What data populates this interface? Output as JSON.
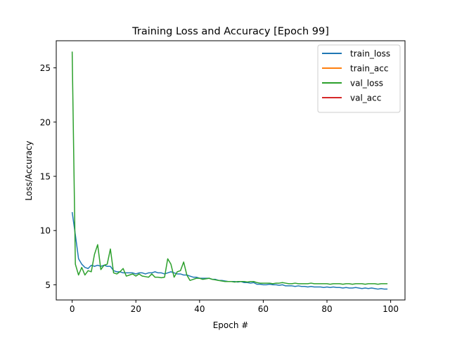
{
  "chart_data": {
    "type": "line",
    "title": "Training Loss and Accuracy [Epoch 99]",
    "xlabel": "Epoch #",
    "ylabel": "Loss/Accuracy",
    "xlim": [
      -5,
      104.5
    ],
    "ylim": [
      3.6,
      27.5
    ],
    "x_ticks": [
      0,
      20,
      40,
      60,
      80,
      100
    ],
    "y_ticks": [
      5,
      10,
      15,
      20,
      25
    ],
    "grid": false,
    "legend_position": "top-right",
    "series": [
      {
        "name": "train_loss",
        "color": "#1f77b4",
        "x": [
          0,
          1,
          2,
          3,
          4,
          5,
          6,
          7,
          8,
          9,
          10,
          11,
          12,
          13,
          14,
          15,
          16,
          17,
          18,
          19,
          20,
          21,
          22,
          23,
          24,
          25,
          26,
          27,
          28,
          29,
          30,
          31,
          32,
          33,
          34,
          35,
          36,
          37,
          38,
          39,
          40,
          41,
          42,
          43,
          44,
          45,
          46,
          47,
          48,
          49,
          50,
          51,
          52,
          53,
          54,
          55,
          56,
          57,
          58,
          59,
          60,
          61,
          62,
          63,
          64,
          65,
          66,
          67,
          68,
          69,
          70,
          71,
          72,
          73,
          74,
          75,
          76,
          77,
          78,
          79,
          80,
          81,
          82,
          83,
          84,
          85,
          86,
          87,
          88,
          89,
          90,
          91,
          92,
          93,
          94,
          95,
          96,
          97,
          98,
          99
        ],
        "y": [
          11.7,
          9.6,
          7.4,
          6.9,
          6.6,
          6.5,
          6.8,
          6.7,
          6.8,
          6.7,
          6.8,
          6.7,
          6.7,
          6.3,
          6.2,
          6.2,
          6.1,
          6.1,
          6.1,
          6.1,
          6.0,
          6.1,
          6.1,
          6.0,
          6.1,
          6.1,
          6.2,
          6.1,
          6.1,
          6.0,
          6.1,
          6.2,
          6.1,
          6.0,
          6.0,
          5.9,
          5.9,
          5.8,
          5.7,
          5.7,
          5.6,
          5.6,
          5.6,
          5.6,
          5.5,
          5.5,
          5.4,
          5.4,
          5.35,
          5.3,
          5.3,
          5.3,
          5.25,
          5.3,
          5.2,
          5.2,
          5.15,
          5.2,
          5.05,
          5.05,
          5.0,
          5.0,
          5.05,
          5.0,
          5.0,
          4.95,
          5.0,
          4.9,
          4.9,
          4.9,
          4.85,
          4.9,
          4.85,
          4.85,
          4.8,
          4.85,
          4.8,
          4.8,
          4.8,
          4.75,
          4.8,
          4.75,
          4.8,
          4.75,
          4.75,
          4.7,
          4.75,
          4.7,
          4.7,
          4.75,
          4.7,
          4.65,
          4.7,
          4.65,
          4.7,
          4.65,
          4.6,
          4.65,
          4.6,
          4.6
        ]
      },
      {
        "name": "train_acc",
        "color": "#ff7f0e",
        "x": [],
        "y": []
      },
      {
        "name": "val_loss",
        "color": "#2ca02c",
        "x": [
          0,
          1,
          2,
          3,
          4,
          5,
          6,
          7,
          8,
          9,
          10,
          11,
          12,
          13,
          14,
          15,
          16,
          17,
          18,
          19,
          20,
          21,
          22,
          23,
          24,
          25,
          26,
          27,
          28,
          29,
          30,
          31,
          32,
          33,
          34,
          35,
          36,
          37,
          38,
          39,
          40,
          41,
          42,
          43,
          44,
          45,
          46,
          47,
          48,
          49,
          50,
          51,
          52,
          53,
          54,
          55,
          56,
          57,
          58,
          59,
          60,
          61,
          62,
          63,
          64,
          65,
          66,
          67,
          68,
          69,
          70,
          71,
          72,
          73,
          74,
          75,
          76,
          77,
          78,
          79,
          80,
          81,
          82,
          83,
          84,
          85,
          86,
          87,
          88,
          89,
          90,
          91,
          92,
          93,
          94,
          95,
          96,
          97,
          98,
          99
        ],
        "y": [
          26.5,
          6.9,
          5.9,
          6.6,
          5.9,
          6.3,
          6.2,
          7.8,
          8.7,
          6.4,
          6.8,
          6.9,
          8.3,
          6.1,
          6.0,
          6.2,
          6.5,
          5.8,
          5.9,
          6.0,
          5.8,
          6.0,
          5.8,
          5.75,
          5.7,
          6.0,
          5.7,
          5.7,
          5.65,
          5.7,
          7.4,
          6.9,
          5.7,
          6.2,
          6.3,
          7.1,
          5.9,
          5.4,
          5.5,
          5.6,
          5.6,
          5.5,
          5.55,
          5.6,
          5.5,
          5.45,
          5.4,
          5.35,
          5.3,
          5.3,
          5.3,
          5.25,
          5.3,
          5.3,
          5.3,
          5.25,
          5.3,
          5.3,
          5.2,
          5.15,
          5.15,
          5.15,
          5.15,
          5.1,
          5.15,
          5.15,
          5.2,
          5.15,
          5.1,
          5.1,
          5.15,
          5.1,
          5.1,
          5.1,
          5.1,
          5.15,
          5.1,
          5.1,
          5.1,
          5.1,
          5.1,
          5.05,
          5.1,
          5.1,
          5.1,
          5.05,
          5.1,
          5.1,
          5.05,
          5.1,
          5.1,
          5.1,
          5.05,
          5.1,
          5.1,
          5.1,
          5.05,
          5.1,
          5.1,
          5.1
        ]
      },
      {
        "name": "val_acc",
        "color": "#d62728",
        "x": [],
        "y": []
      }
    ]
  }
}
